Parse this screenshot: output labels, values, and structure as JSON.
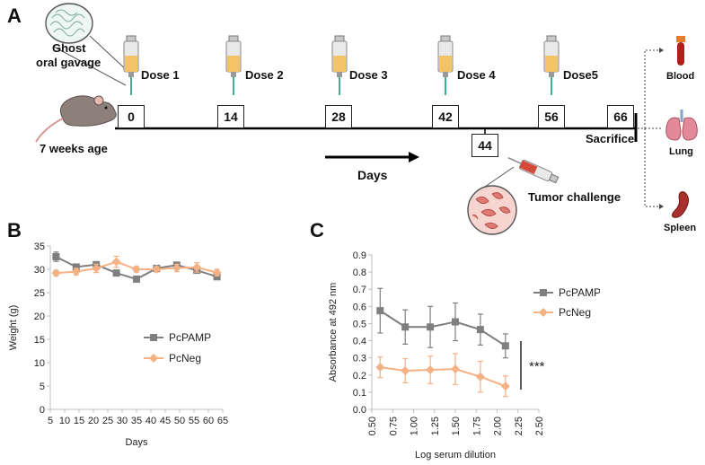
{
  "panels": {
    "a": "A",
    "b": "B",
    "c": "C"
  },
  "timeline": {
    "ghost_label_line1": "Ghost",
    "ghost_label_line2": "oral gavage",
    "mouse_age": "7 weeks age",
    "doses": [
      "Dose 1",
      "Dose 2",
      "Dose 3",
      "Dose 4",
      "Dose5"
    ],
    "day_boxes": [
      "0",
      "14",
      "28",
      "42",
      "56",
      "66"
    ],
    "challenge_day": "44",
    "days_label": "Days",
    "sacrifice_label": "Sacrifice",
    "tumor_label": "Tumor challenge",
    "organs": [
      "Blood",
      "Lung",
      "Spleen"
    ]
  },
  "colors": {
    "pcpamp": "#7f7f7f",
    "pcneg": "#f4b183",
    "axis": "#bfbfbf",
    "text": "#111111"
  },
  "chart_data": [
    {
      "type": "line",
      "panel": "B",
      "xlabel": "Days",
      "ylabel": "Weight (g)",
      "xlim": [
        5,
        65
      ],
      "ylim": [
        0,
        35
      ],
      "xticks": [
        "5",
        "10",
        "15",
        "20",
        "25",
        "30",
        "35",
        "40",
        "45",
        "50",
        "55",
        "60",
        "65"
      ],
      "yticks": [
        "0",
        "5",
        "10",
        "15",
        "20",
        "25",
        "30",
        "35"
      ],
      "legend_position": "right",
      "series": [
        {
          "name": "PcPAMP",
          "x": [
            7,
            14,
            21,
            28,
            35,
            42,
            49,
            56,
            63
          ],
          "y": [
            32.7,
            30.5,
            31.0,
            29.2,
            27.9,
            30.2,
            30.9,
            29.8,
            28.4
          ],
          "err": [
            1.0,
            0.5,
            0.5,
            0.6,
            0.6,
            0.5,
            0.5,
            0.6,
            0.6
          ]
        },
        {
          "name": "PcNeg",
          "x": [
            7,
            14,
            21,
            28,
            35,
            42,
            49,
            56,
            63
          ],
          "y": [
            29.2,
            29.5,
            30.2,
            31.6,
            30.0,
            30.0,
            30.3,
            30.4,
            29.3
          ],
          "err": [
            0.6,
            0.7,
            0.9,
            1.2,
            0.6,
            0.6,
            0.8,
            1.0,
            0.7
          ]
        }
      ]
    },
    {
      "type": "line",
      "panel": "C",
      "xlabel": "Log serum dilution",
      "ylabel": "Absorbance at 492 nm",
      "xlim": [
        0.5,
        2.5
      ],
      "ylim": [
        0,
        0.9
      ],
      "xticks": [
        "0.50",
        "0.75",
        "1.00",
        "1.25",
        "1.50",
        "1.75",
        "2.00",
        "2.25",
        "2.50"
      ],
      "yticks": [
        "0.0",
        "0.1",
        "0.2",
        "0.3",
        "0.4",
        "0.5",
        "0.6",
        "0.7",
        "0.8",
        "0.9"
      ],
      "legend_position": "right",
      "annotation": "***",
      "series": [
        {
          "name": "PcPAMP",
          "x": [
            0.6,
            0.9,
            1.2,
            1.5,
            1.8,
            2.1
          ],
          "y": [
            0.575,
            0.48,
            0.48,
            0.51,
            0.465,
            0.37
          ],
          "err": [
            0.13,
            0.1,
            0.12,
            0.11,
            0.09,
            0.07
          ]
        },
        {
          "name": "PcNeg",
          "x": [
            0.6,
            0.9,
            1.2,
            1.5,
            1.8,
            2.1
          ],
          "y": [
            0.245,
            0.225,
            0.23,
            0.235,
            0.19,
            0.135
          ],
          "err": [
            0.06,
            0.07,
            0.08,
            0.09,
            0.09,
            0.06
          ]
        }
      ]
    }
  ]
}
